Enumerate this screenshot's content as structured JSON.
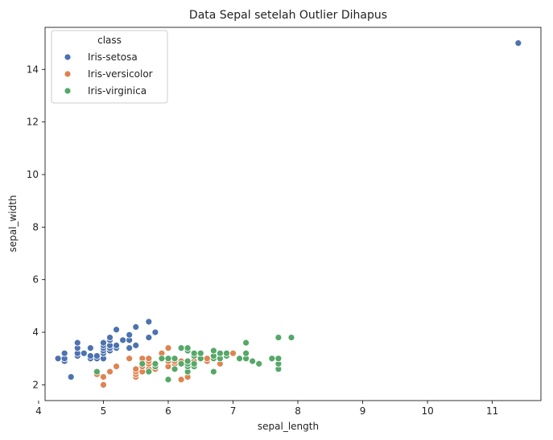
{
  "chart_data": {
    "type": "scatter",
    "title": "Data Sepal setelah Outlier Dihapus",
    "xlabel": "sepal_length",
    "ylabel": "sepal_width",
    "xlim": [
      4.1,
      11.75
    ],
    "ylim": [
      1.4,
      15.6
    ],
    "xticks": [
      4,
      5,
      6,
      7,
      8,
      9,
      10,
      11
    ],
    "yticks": [
      2,
      4,
      6,
      8,
      10,
      12,
      14
    ],
    "grid": false,
    "legend": {
      "title": "class",
      "placement": "top-left"
    },
    "series": [
      {
        "name": "Iris-setosa",
        "color": "#4c72b0",
        "points": [
          [
            4.3,
            3.0
          ],
          [
            4.4,
            2.9
          ],
          [
            4.4,
            3.0
          ],
          [
            4.4,
            3.2
          ],
          [
            4.5,
            2.3
          ],
          [
            4.6,
            3.1
          ],
          [
            4.6,
            3.2
          ],
          [
            4.6,
            3.4
          ],
          [
            4.6,
            3.6
          ],
          [
            4.7,
            3.2
          ],
          [
            4.8,
            3.0
          ],
          [
            4.8,
            3.1
          ],
          [
            4.8,
            3.4
          ],
          [
            4.9,
            3.0
          ],
          [
            4.9,
            3.1
          ],
          [
            5.0,
            3.0
          ],
          [
            5.0,
            3.2
          ],
          [
            5.0,
            3.3
          ],
          [
            5.0,
            3.4
          ],
          [
            5.0,
            3.5
          ],
          [
            5.0,
            3.6
          ],
          [
            5.1,
            3.3
          ],
          [
            5.1,
            3.4
          ],
          [
            5.1,
            3.5
          ],
          [
            5.1,
            3.7
          ],
          [
            5.1,
            3.8
          ],
          [
            5.2,
            3.4
          ],
          [
            5.2,
            3.5
          ],
          [
            5.2,
            4.1
          ],
          [
            5.3,
            3.7
          ],
          [
            5.4,
            3.4
          ],
          [
            5.4,
            3.7
          ],
          [
            5.4,
            3.9
          ],
          [
            5.5,
            3.5
          ],
          [
            5.5,
            4.2
          ],
          [
            5.7,
            3.8
          ],
          [
            5.7,
            4.4
          ],
          [
            5.8,
            4.0
          ],
          [
            11.4,
            15.0
          ]
        ]
      },
      {
        "name": "Iris-versicolor",
        "color": "#dd8452",
        "points": [
          [
            4.9,
            2.4
          ],
          [
            5.0,
            2.0
          ],
          [
            5.0,
            2.3
          ],
          [
            5.1,
            2.5
          ],
          [
            5.2,
            2.7
          ],
          [
            5.4,
            3.0
          ],
          [
            5.5,
            2.3
          ],
          [
            5.5,
            2.4
          ],
          [
            5.5,
            2.5
          ],
          [
            5.5,
            2.6
          ],
          [
            5.6,
            2.5
          ],
          [
            5.6,
            2.7
          ],
          [
            5.6,
            2.9
          ],
          [
            5.6,
            3.0
          ],
          [
            5.7,
            2.6
          ],
          [
            5.7,
            2.8
          ],
          [
            5.7,
            2.9
          ],
          [
            5.7,
            3.0
          ],
          [
            5.8,
            2.6
          ],
          [
            5.8,
            2.7
          ],
          [
            5.9,
            3.0
          ],
          [
            5.9,
            3.2
          ],
          [
            6.0,
            2.2
          ],
          [
            6.0,
            2.7
          ],
          [
            6.0,
            2.9
          ],
          [
            6.0,
            3.4
          ],
          [
            6.1,
            2.8
          ],
          [
            6.1,
            2.9
          ],
          [
            6.1,
            3.0
          ],
          [
            6.2,
            2.2
          ],
          [
            6.2,
            2.9
          ],
          [
            6.3,
            2.3
          ],
          [
            6.3,
            2.5
          ],
          [
            6.3,
            3.3
          ],
          [
            6.4,
            2.9
          ],
          [
            6.4,
            3.2
          ],
          [
            6.6,
            2.9
          ],
          [
            6.6,
            3.0
          ],
          [
            6.7,
            3.0
          ],
          [
            6.7,
            3.1
          ],
          [
            6.8,
            2.8
          ],
          [
            6.9,
            3.1
          ],
          [
            7.0,
            3.2
          ]
        ]
      },
      {
        "name": "Iris-virginica",
        "color": "#55a868",
        "points": [
          [
            4.9,
            2.5
          ],
          [
            5.6,
            2.8
          ],
          [
            5.7,
            2.5
          ],
          [
            5.8,
            2.7
          ],
          [
            5.8,
            2.8
          ],
          [
            5.9,
            3.0
          ],
          [
            6.0,
            2.2
          ],
          [
            6.0,
            3.0
          ],
          [
            6.1,
            2.6
          ],
          [
            6.1,
            3.0
          ],
          [
            6.2,
            2.8
          ],
          [
            6.2,
            3.4
          ],
          [
            6.3,
            2.5
          ],
          [
            6.3,
            2.7
          ],
          [
            6.3,
            2.8
          ],
          [
            6.3,
            2.9
          ],
          [
            6.3,
            3.3
          ],
          [
            6.3,
            3.4
          ],
          [
            6.4,
            2.7
          ],
          [
            6.4,
            2.8
          ],
          [
            6.4,
            3.1
          ],
          [
            6.4,
            3.2
          ],
          [
            6.5,
            3.0
          ],
          [
            6.5,
            3.2
          ],
          [
            6.7,
            2.5
          ],
          [
            6.7,
            3.0
          ],
          [
            6.7,
            3.1
          ],
          [
            6.7,
            3.3
          ],
          [
            6.8,
            3.0
          ],
          [
            6.8,
            3.2
          ],
          [
            6.9,
            3.1
          ],
          [
            6.9,
            3.2
          ],
          [
            7.1,
            3.0
          ],
          [
            7.2,
            3.0
          ],
          [
            7.2,
            3.2
          ],
          [
            7.2,
            3.6
          ],
          [
            7.3,
            2.9
          ],
          [
            7.4,
            2.8
          ],
          [
            7.6,
            3.0
          ],
          [
            7.7,
            2.6
          ],
          [
            7.7,
            2.8
          ],
          [
            7.7,
            3.0
          ],
          [
            7.7,
            3.8
          ],
          [
            7.9,
            3.8
          ]
        ]
      }
    ]
  }
}
